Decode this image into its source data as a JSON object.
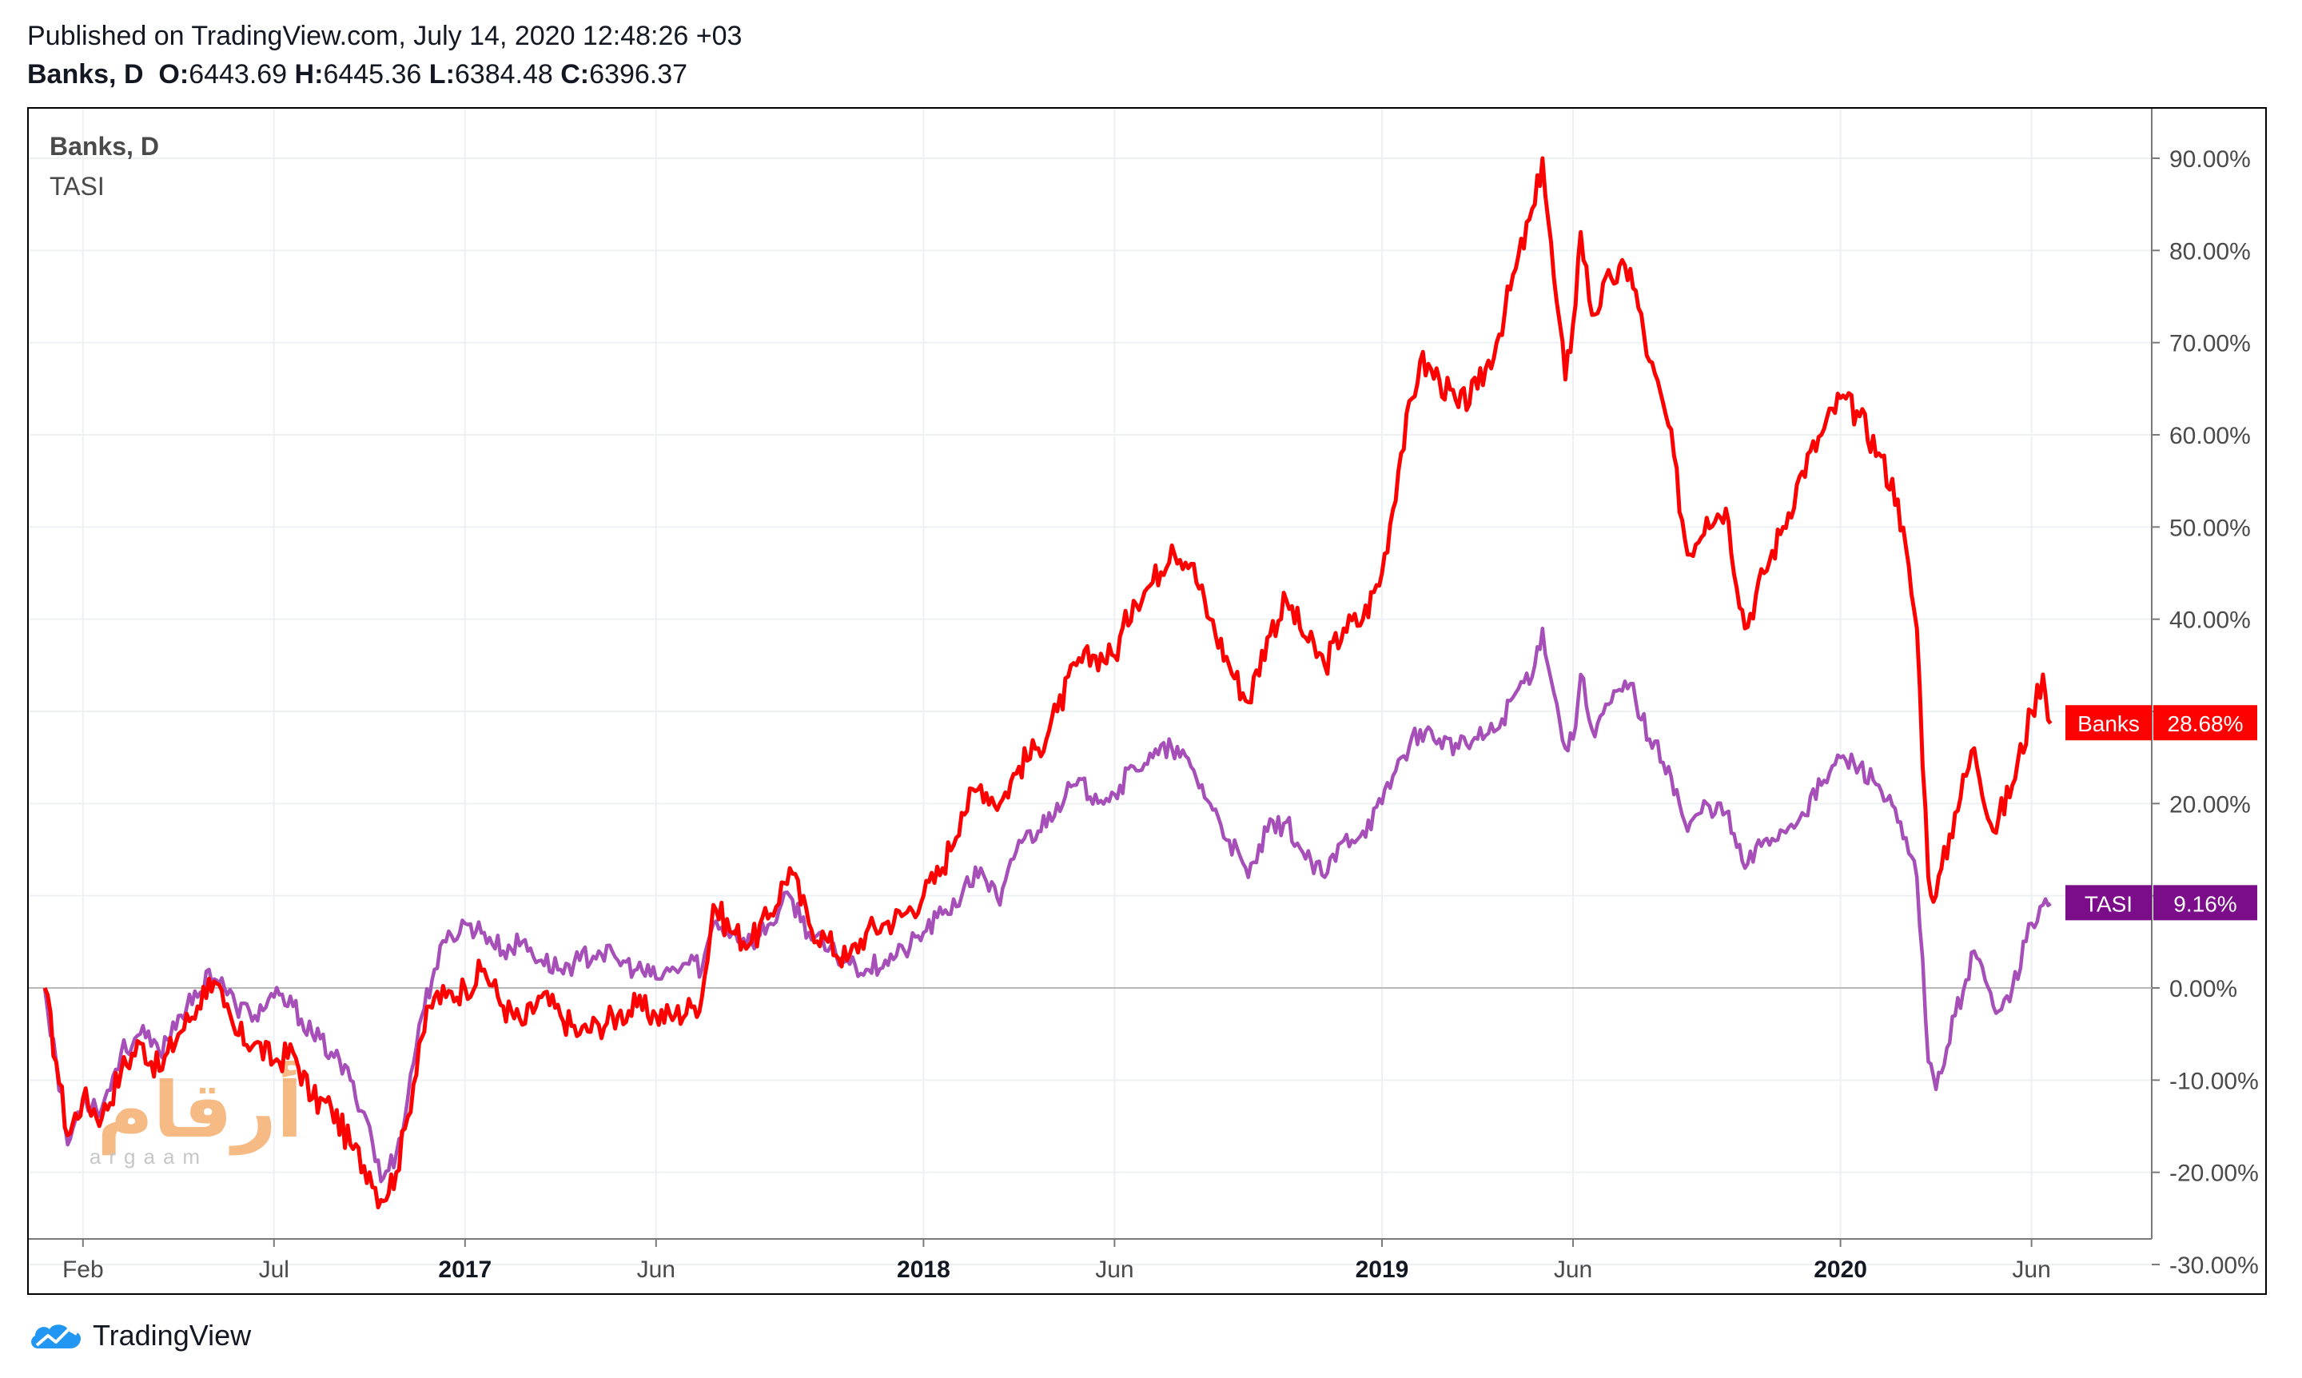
{
  "header": {
    "published": "Published on TradingView.com, July 14, 2020 12:48:26 +03",
    "symbol": "Banks, D",
    "o_label": "O:",
    "o_value": "6443.69",
    "h_label": "H:",
    "h_value": "6445.36",
    "l_label": "L:",
    "l_value": "6384.48",
    "c_label": "C:",
    "c_value": "6396.37"
  },
  "legend": {
    "main": "Banks, D",
    "compare": "TASI"
  },
  "watermark": {
    "arabic": "أرقام",
    "latin": "argaam"
  },
  "footer": {
    "brand": "TradingView"
  },
  "colors": {
    "banks": "#ff0000",
    "tasi": "#a64fb8",
    "tasi_tag": "#7b0d8a",
    "grid": "#eef1f4",
    "axis_text": "#4a4a4a"
  },
  "chart_data": {
    "type": "line",
    "title": "Banks, D",
    "xlabel": "",
    "ylabel": "",
    "ylim": [
      -30,
      90
    ],
    "y_ticks": [
      90,
      80,
      70,
      60,
      50,
      40,
      30,
      20,
      10,
      0,
      -10,
      -20,
      -30
    ],
    "y_tick_labels": [
      "90.00%",
      "80.00%",
      "70.00%",
      "60.00%",
      "50.00%",
      "40.00%",
      "",
      "20.00%",
      "",
      "0.00%",
      "-10.00%",
      "-20.00%",
      "-30.00%"
    ],
    "x_range": [
      0,
      53.5
    ],
    "x_ticks": [
      {
        "m": 1,
        "label": "Feb",
        "bold": false
      },
      {
        "m": 6,
        "label": "Jul",
        "bold": false
      },
      {
        "m": 11,
        "label": "2017",
        "bold": true
      },
      {
        "m": 16,
        "label": "Jun",
        "bold": false
      },
      {
        "m": 23,
        "label": "2018",
        "bold": true
      },
      {
        "m": 28,
        "label": "Jun",
        "bold": false
      },
      {
        "m": 35,
        "label": "2019",
        "bold": true
      },
      {
        "m": 40,
        "label": "Jun",
        "bold": false
      },
      {
        "m": 47,
        "label": "2020",
        "bold": true
      },
      {
        "m": 52,
        "label": "Jun",
        "bold": false
      }
    ],
    "series": [
      {
        "name": "Banks",
        "last_label": "28.68%",
        "last_value": 28.68,
        "points": [
          [
            0,
            0
          ],
          [
            0.3,
            -8
          ],
          [
            0.6,
            -16
          ],
          [
            1,
            -12
          ],
          [
            1.5,
            -14
          ],
          [
            2,
            -9
          ],
          [
            2.5,
            -6
          ],
          [
            3,
            -9
          ],
          [
            3.5,
            -5
          ],
          [
            4,
            -2
          ],
          [
            4.3,
            1
          ],
          [
            4.7,
            -2
          ],
          [
            5,
            -5
          ],
          [
            5.5,
            -6
          ],
          [
            6,
            -8
          ],
          [
            6.5,
            -7
          ],
          [
            7,
            -12
          ],
          [
            7.5,
            -13
          ],
          [
            8,
            -17
          ],
          [
            8.5,
            -20
          ],
          [
            8.8,
            -23
          ],
          [
            9.2,
            -20
          ],
          [
            9.5,
            -14
          ],
          [
            9.8,
            -6
          ],
          [
            10.2,
            -1
          ],
          [
            10.5,
            -1
          ],
          [
            11,
            0
          ],
          [
            11.5,
            2
          ],
          [
            12,
            -2
          ],
          [
            12.5,
            -4
          ],
          [
            13,
            -1
          ],
          [
            13.5,
            -3
          ],
          [
            14,
            -5
          ],
          [
            14.5,
            -4
          ],
          [
            15,
            -3
          ],
          [
            15.5,
            -2
          ],
          [
            16,
            -3
          ],
          [
            16.5,
            -3
          ],
          [
            17,
            -2
          ],
          [
            17.2,
            -1
          ],
          [
            17.5,
            9
          ],
          [
            18,
            6
          ],
          [
            18.5,
            5
          ],
          [
            19,
            8
          ],
          [
            19.5,
            13
          ],
          [
            20,
            7
          ],
          [
            20.5,
            5
          ],
          [
            21,
            3
          ],
          [
            21.5,
            6
          ],
          [
            22,
            7
          ],
          [
            22.5,
            8
          ],
          [
            23,
            10
          ],
          [
            23.5,
            13
          ],
          [
            24,
            19
          ],
          [
            24.5,
            22
          ],
          [
            25,
            20
          ],
          [
            25.5,
            24
          ],
          [
            26,
            26
          ],
          [
            26.5,
            30
          ],
          [
            27,
            35
          ],
          [
            27.5,
            36
          ],
          [
            28,
            36
          ],
          [
            28.5,
            42
          ],
          [
            29,
            44
          ],
          [
            29.5,
            48
          ],
          [
            30,
            46
          ],
          [
            30.5,
            40
          ],
          [
            31,
            35
          ],
          [
            31.5,
            31
          ],
          [
            32,
            38
          ],
          [
            32.5,
            42
          ],
          [
            33,
            38
          ],
          [
            33.5,
            35
          ],
          [
            34,
            39
          ],
          [
            34.5,
            40
          ],
          [
            35,
            45
          ],
          [
            35.5,
            58
          ],
          [
            36,
            68
          ],
          [
            36.5,
            66
          ],
          [
            37,
            63
          ],
          [
            37.5,
            65
          ],
          [
            38,
            70
          ],
          [
            38.5,
            78
          ],
          [
            39,
            85
          ],
          [
            39.2,
            90
          ],
          [
            39.5,
            77
          ],
          [
            39.8,
            66
          ],
          [
            40,
            72
          ],
          [
            40.2,
            82
          ],
          [
            40.5,
            73
          ],
          [
            41,
            77
          ],
          [
            41.5,
            78
          ],
          [
            42,
            68
          ],
          [
            42.5,
            61
          ],
          [
            43,
            47
          ],
          [
            43.5,
            51
          ],
          [
            44,
            52
          ],
          [
            44.5,
            39
          ],
          [
            45,
            45
          ],
          [
            45.5,
            50
          ],
          [
            46,
            56
          ],
          [
            46.5,
            60
          ],
          [
            47,
            64
          ],
          [
            47.5,
            62
          ],
          [
            48,
            58
          ],
          [
            48.5,
            53
          ],
          [
            49,
            39
          ],
          [
            49.3,
            12
          ],
          [
            49.5,
            10
          ],
          [
            50,
            19
          ],
          [
            50.5,
            26
          ],
          [
            51,
            17
          ],
          [
            51.5,
            22
          ],
          [
            52,
            30
          ],
          [
            52.3,
            34
          ],
          [
            52.5,
            28.68
          ]
        ]
      },
      {
        "name": "TASI",
        "last_label": "9.16%",
        "last_value": 9.16,
        "points": [
          [
            0,
            0
          ],
          [
            0.3,
            -8
          ],
          [
            0.6,
            -17
          ],
          [
            1,
            -12
          ],
          [
            1.5,
            -13
          ],
          [
            2,
            -7
          ],
          [
            2.5,
            -5
          ],
          [
            3,
            -7
          ],
          [
            3.5,
            -3
          ],
          [
            4,
            -1
          ],
          [
            4.3,
            2
          ],
          [
            4.7,
            0
          ],
          [
            5,
            -2
          ],
          [
            5.5,
            -3
          ],
          [
            6,
            -1
          ],
          [
            6.5,
            -2
          ],
          [
            7,
            -5
          ],
          [
            7.5,
            -7
          ],
          [
            8,
            -10
          ],
          [
            8.5,
            -15
          ],
          [
            8.8,
            -21
          ],
          [
            9.2,
            -18
          ],
          [
            9.5,
            -12
          ],
          [
            9.8,
            -4
          ],
          [
            10.2,
            2
          ],
          [
            10.5,
            5
          ],
          [
            11,
            7
          ],
          [
            11.5,
            6
          ],
          [
            12,
            4
          ],
          [
            12.5,
            5
          ],
          [
            13,
            3
          ],
          [
            13.5,
            2
          ],
          [
            14,
            3
          ],
          [
            14.5,
            4
          ],
          [
            15,
            3
          ],
          [
            15.5,
            2
          ],
          [
            16,
            1
          ],
          [
            16.5,
            2
          ],
          [
            17,
            3
          ],
          [
            17.2,
            2
          ],
          [
            17.5,
            7
          ],
          [
            18,
            6
          ],
          [
            18.5,
            5
          ],
          [
            19,
            7
          ],
          [
            19.5,
            10
          ],
          [
            20,
            6
          ],
          [
            20.5,
            4
          ],
          [
            21,
            3
          ],
          [
            21.5,
            2
          ],
          [
            22,
            3
          ],
          [
            22.5,
            4
          ],
          [
            23,
            6
          ],
          [
            23.5,
            8
          ],
          [
            24,
            10
          ],
          [
            24.5,
            13
          ],
          [
            25,
            9
          ],
          [
            25.5,
            16
          ],
          [
            26,
            17
          ],
          [
            26.5,
            20
          ],
          [
            27,
            22
          ],
          [
            27.5,
            21
          ],
          [
            28,
            21
          ],
          [
            28.5,
            24
          ],
          [
            29,
            25
          ],
          [
            29.5,
            26
          ],
          [
            30,
            24
          ],
          [
            30.5,
            20
          ],
          [
            31,
            16
          ],
          [
            31.5,
            12
          ],
          [
            32,
            17
          ],
          [
            32.5,
            18
          ],
          [
            33,
            14
          ],
          [
            33.5,
            12
          ],
          [
            34,
            16
          ],
          [
            34.5,
            17
          ],
          [
            35,
            20
          ],
          [
            35.5,
            25
          ],
          [
            36,
            28
          ],
          [
            36.5,
            27
          ],
          [
            37,
            26
          ],
          [
            37.5,
            27
          ],
          [
            38,
            28
          ],
          [
            38.5,
            32
          ],
          [
            39,
            35
          ],
          [
            39.2,
            39
          ],
          [
            39.5,
            32
          ],
          [
            39.8,
            26
          ],
          [
            40,
            27
          ],
          [
            40.2,
            34
          ],
          [
            40.5,
            28
          ],
          [
            41,
            31
          ],
          [
            41.5,
            33
          ],
          [
            42,
            27
          ],
          [
            42.5,
            24
          ],
          [
            43,
            17
          ],
          [
            43.5,
            20
          ],
          [
            44,
            19
          ],
          [
            44.5,
            13
          ],
          [
            45,
            16
          ],
          [
            45.5,
            17
          ],
          [
            46,
            19
          ],
          [
            46.5,
            22
          ],
          [
            47,
            25
          ],
          [
            47.5,
            24
          ],
          [
            48,
            22
          ],
          [
            48.5,
            18
          ],
          [
            49,
            12
          ],
          [
            49.3,
            -8
          ],
          [
            49.5,
            -11
          ],
          [
            50,
            -3
          ],
          [
            50.5,
            4
          ],
          [
            51,
            -2
          ],
          [
            51.5,
            0
          ],
          [
            52,
            7
          ],
          [
            52.3,
            9
          ],
          [
            52.5,
            9.16
          ]
        ]
      }
    ]
  }
}
